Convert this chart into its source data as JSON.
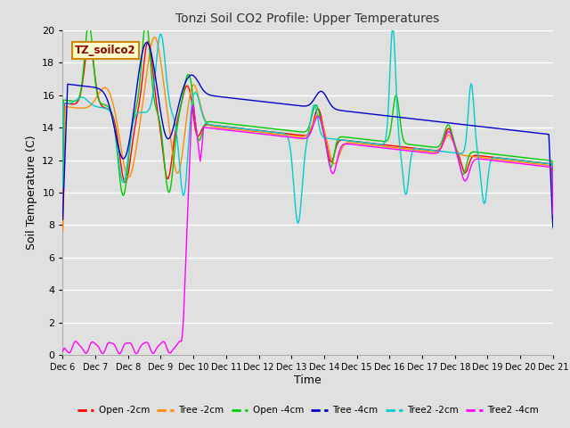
{
  "title": "Tonzi Soil CO2 Profile: Upper Temperatures",
  "xlabel": "Time",
  "ylabel": "Soil Temperature (C)",
  "annotation": "TZ_soilco2",
  "ylim": [
    0,
    20
  ],
  "yticks": [
    0,
    2,
    4,
    6,
    8,
    10,
    12,
    14,
    16,
    18,
    20
  ],
  "background_color": "#e0e0e0",
  "plot_bg_color": "#e0e0e0",
  "grid_color": "#ffffff",
  "series_colors": {
    "Open -2cm": "#ff0000",
    "Tree -2cm": "#ff8c00",
    "Open -4cm": "#00cc00",
    "Tree -4cm": "#0000cc",
    "Tree2 -2cm": "#00cccc",
    "Tree2 -4cm": "#ff00ff"
  },
  "n_points": 600,
  "x_start": 6.0,
  "x_end": 21.0,
  "xtick_positions": [
    6,
    7,
    8,
    9,
    10,
    11,
    12,
    13,
    14,
    15,
    16,
    17,
    18,
    19,
    20,
    21
  ],
  "xtick_labels": [
    "Dec 6",
    "Dec 7",
    "Dec 8",
    "Dec 9",
    "Dec 10",
    "Dec 11",
    "Dec 12",
    "Dec 13",
    "Dec 14",
    "Dec 15",
    "Dec 16",
    "Dec 17",
    "Dec 18",
    "Dec 19",
    "Dec 20",
    "Dec 21"
  ]
}
